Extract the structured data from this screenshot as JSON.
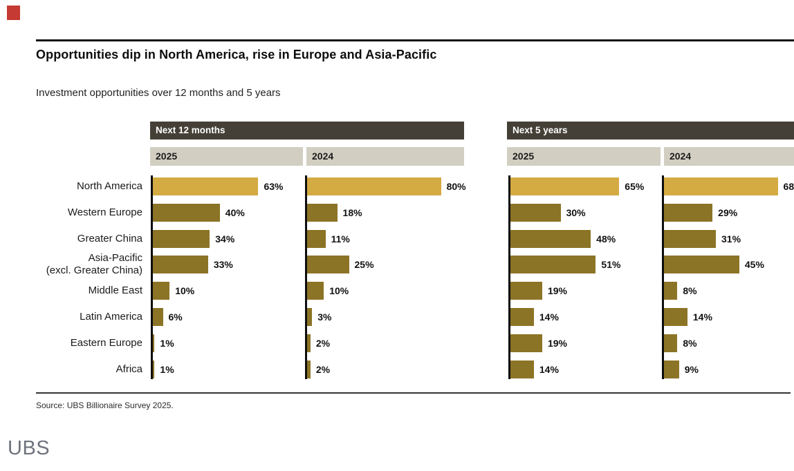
{
  "page": {
    "red_accent_color": "#c63a34"
  },
  "header": {
    "title": "Opportunities dip in North America, rise in Europe and Asia-Pacific",
    "subtitle": "Investment opportunities over 12 months and 5 years"
  },
  "chart": {
    "group_headers": [
      "Next 12 months",
      "Next 5 years"
    ],
    "column_headers": [
      "2025",
      "2024",
      "2025",
      "2024"
    ]
  },
  "chart_data": {
    "type": "bar",
    "orientation": "horizontal",
    "title": "Opportunities dip in North America, rise in Europe and Asia-Pacific",
    "subtitle": "Investment opportunities over 12 months and 5 years",
    "categories": [
      "North America",
      "Western Europe",
      "Greater China",
      "Asia-Pacific\n(excl. Greater China)",
      "Middle East",
      "Latin America",
      "Eastern Europe",
      "Africa"
    ],
    "value_suffix": "%",
    "xlim": [
      0,
      100
    ],
    "grid": false,
    "legend_position": "top-column-headers",
    "series": [
      {
        "group": "Next 12 months",
        "name": "2025",
        "values": [
          63,
          40,
          34,
          33,
          10,
          6,
          1,
          1
        ]
      },
      {
        "group": "Next 12 months",
        "name": "2024",
        "values": [
          80,
          18,
          11,
          25,
          10,
          3,
          2,
          2
        ]
      },
      {
        "group": "Next 5 years",
        "name": "2025",
        "values": [
          65,
          30,
          48,
          51,
          19,
          14,
          19,
          14
        ]
      },
      {
        "group": "Next 5 years",
        "name": "2024",
        "values": [
          68,
          29,
          31,
          45,
          8,
          14,
          8,
          9
        ]
      }
    ],
    "colors": {
      "highlight_first_category_bar": "#d4aa43",
      "default_bar": "#8c7426",
      "group_header_bg": "#454037",
      "column_header_bg": "#d2cfc2"
    }
  },
  "footer": {
    "source": "Source: UBS Billionaire Survey 2025.",
    "logo_text": "UBS"
  }
}
